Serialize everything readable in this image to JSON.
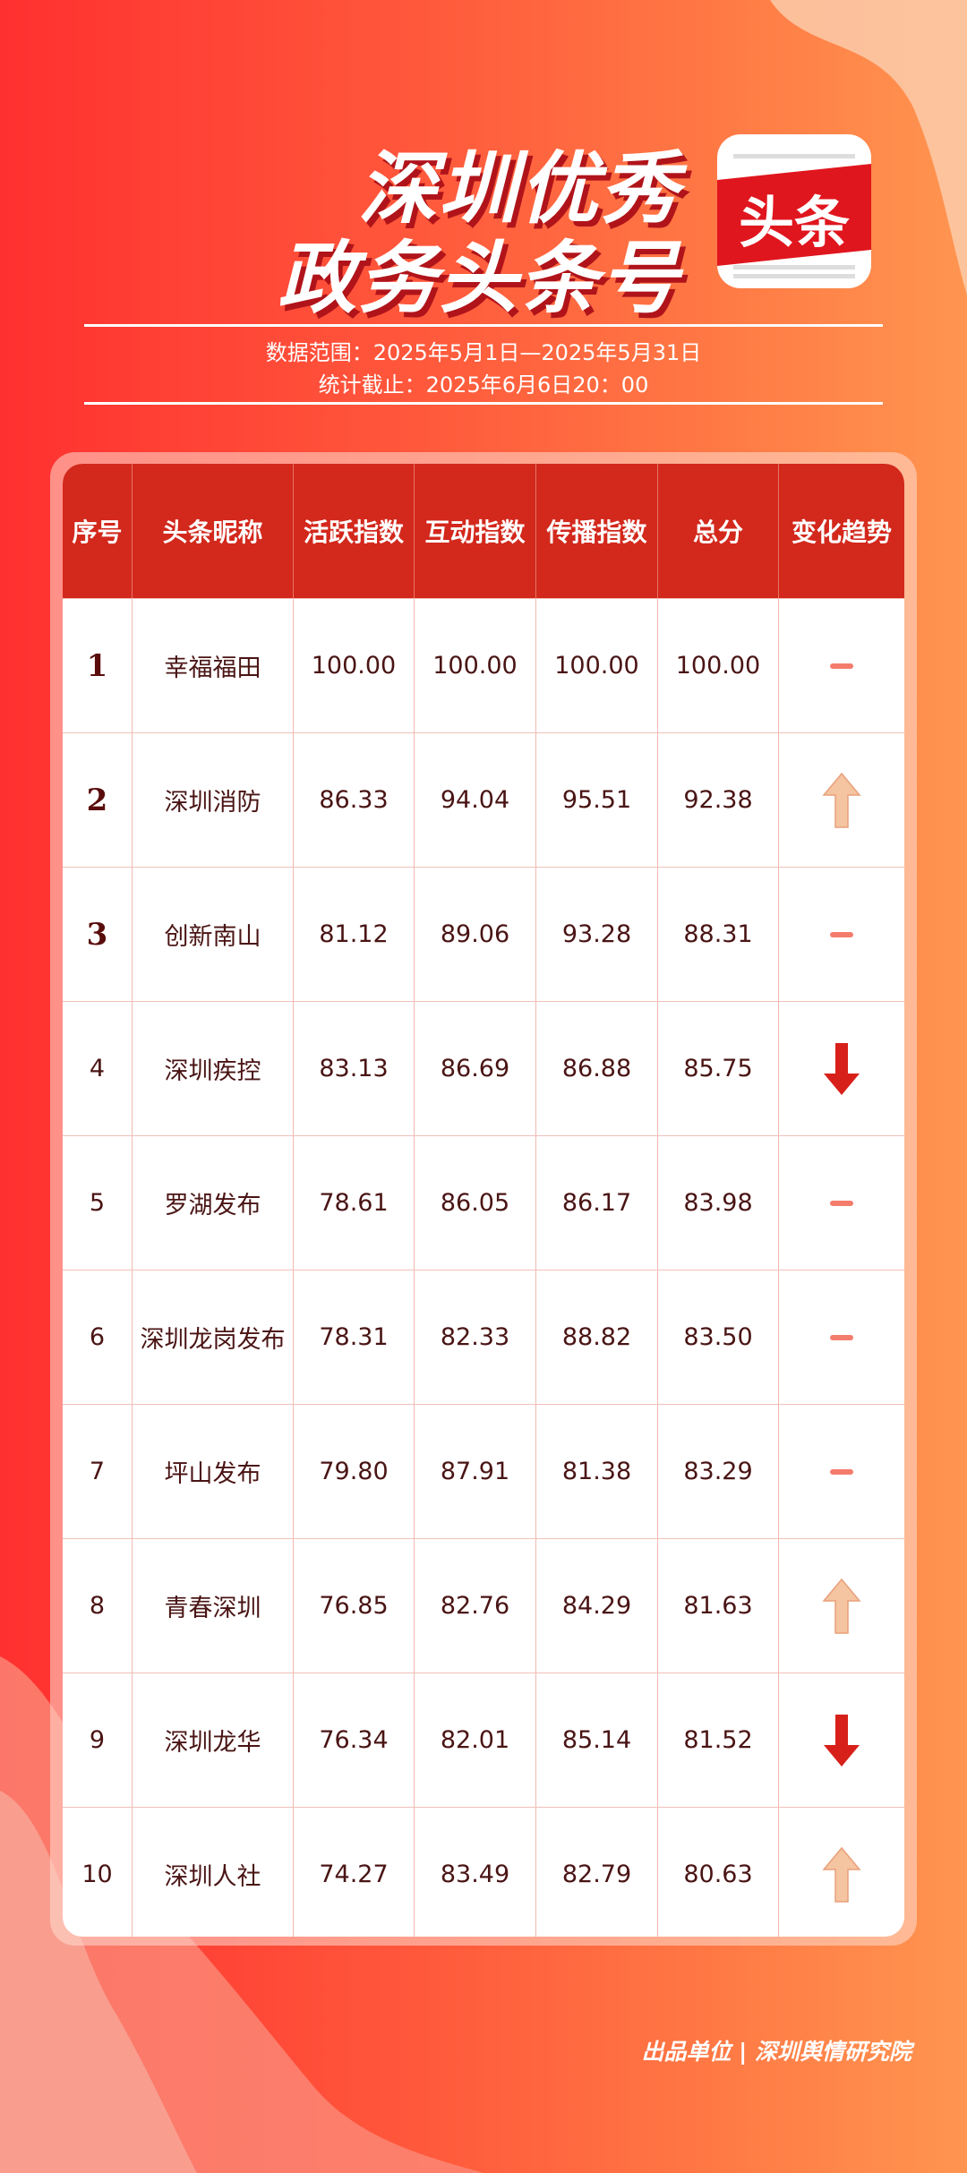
{
  "header": {
    "title_line1": "深圳优秀",
    "title_line2": "政务头条号",
    "logo_text": "头条"
  },
  "meta": {
    "range": "数据范围：2025年5月1日—2025年5月31日",
    "cutoff": "统计截止：2025年6月6日20：00"
  },
  "table": {
    "columns": [
      "序号",
      "头条昵称",
      "活跃指数",
      "互动指数",
      "传播指数",
      "总分",
      "变化趋势"
    ],
    "rows": [
      {
        "rank": "1",
        "name": "幸福福田",
        "active": "100.00",
        "interact": "100.00",
        "spread": "100.00",
        "total": "100.00",
        "trend": "flat"
      },
      {
        "rank": "2",
        "name": "深圳消防",
        "active": "86.33",
        "interact": "94.04",
        "spread": "95.51",
        "total": "92.38",
        "trend": "up"
      },
      {
        "rank": "3",
        "name": "创新南山",
        "active": "81.12",
        "interact": "89.06",
        "spread": "93.28",
        "total": "88.31",
        "trend": "flat"
      },
      {
        "rank": "4",
        "name": "深圳疾控",
        "active": "83.13",
        "interact": "86.69",
        "spread": "86.88",
        "total": "85.75",
        "trend": "down"
      },
      {
        "rank": "5",
        "name": "罗湖发布",
        "active": "78.61",
        "interact": "86.05",
        "spread": "86.17",
        "total": "83.98",
        "trend": "flat"
      },
      {
        "rank": "6",
        "name": "深圳龙岗发布",
        "active": "78.31",
        "interact": "82.33",
        "spread": "88.82",
        "total": "83.50",
        "trend": "flat"
      },
      {
        "rank": "7",
        "name": "坪山发布",
        "active": "79.80",
        "interact": "87.91",
        "spread": "81.38",
        "total": "83.29",
        "trend": "flat"
      },
      {
        "rank": "8",
        "name": "青春深圳",
        "active": "76.85",
        "interact": "82.76",
        "spread": "84.29",
        "total": "81.63",
        "trend": "up"
      },
      {
        "rank": "9",
        "name": "深圳龙华",
        "active": "76.34",
        "interact": "82.01",
        "spread": "85.14",
        "total": "81.52",
        "trend": "down"
      },
      {
        "rank": "10",
        "name": "深圳人社",
        "active": "74.27",
        "interact": "83.49",
        "spread": "82.79",
        "total": "80.63",
        "trend": "up"
      }
    ]
  },
  "footer": {
    "credit": "出品单位 | 深圳舆情研究院"
  },
  "colors": {
    "header_red": "#d3281c",
    "up_arrow": "#f5c4a0",
    "down_arrow": "#d8201a",
    "flat_dash": "#f47c6c"
  }
}
